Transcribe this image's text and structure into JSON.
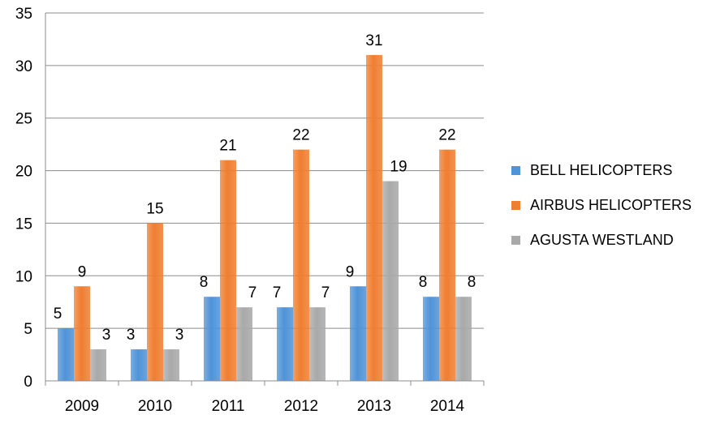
{
  "chart_data": {
    "type": "bar",
    "categories": [
      "2009",
      "2010",
      "2011",
      "2012",
      "2013",
      "2014"
    ],
    "series": [
      {
        "name": "BELL HELICOPTERS",
        "values": [
          5,
          3,
          8,
          7,
          9,
          8
        ],
        "color": "#4F93D8"
      },
      {
        "name": "AIRBUS HELICOPTERS",
        "values": [
          9,
          15,
          21,
          22,
          31,
          22
        ],
        "color": "#F07E30"
      },
      {
        "name": "AGUSTA WESTLAND",
        "values": [
          3,
          3,
          7,
          7,
          19,
          8
        ],
        "color": "#A9A9A9"
      }
    ],
    "ylim": [
      0,
      35
    ],
    "yticks": [
      0,
      5,
      10,
      15,
      20,
      25,
      30,
      35
    ],
    "grid": true,
    "legend_position": "right",
    "data_labels": true,
    "title": "",
    "xlabel": "",
    "ylabel": ""
  }
}
